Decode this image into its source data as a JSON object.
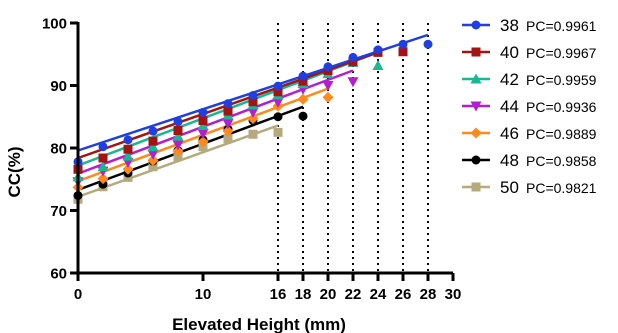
{
  "chart_data": {
    "type": "scatter",
    "xlabel": "Elevated Height (mm)",
    "ylabel": "CC(%)",
    "xlim": [
      0,
      30
    ],
    "ylim": [
      60,
      100
    ],
    "x_ticks": [
      0,
      10,
      16,
      18,
      20,
      22,
      24,
      26,
      28,
      30
    ],
    "x_tick_labels": [
      "0",
      "10",
      "16",
      "18",
      "20",
      "22",
      "24",
      "26",
      "28",
      "30"
    ],
    "y_ticks": [
      60,
      70,
      80,
      90,
      100
    ],
    "y_tick_labels": [
      "60",
      "70",
      "80",
      "90",
      "100"
    ],
    "vlines": [
      16,
      18,
      20,
      22,
      24,
      26,
      28
    ],
    "grid": false,
    "legend_position": "right",
    "series": [
      {
        "name": "38",
        "pc": "PC=0.9961",
        "color": "#1f3fe0",
        "marker": "circle",
        "line": {
          "x": [
            0,
            28
          ],
          "y": [
            79.6,
            98.1
          ]
        },
        "x": [
          0,
          2,
          4,
          6,
          8,
          10,
          12,
          14,
          16,
          18,
          20,
          22,
          24,
          26,
          28
        ],
        "y": [
          77.8,
          80.2,
          81.3,
          82.7,
          84.2,
          85.7,
          87.1,
          88.4,
          89.9,
          91.5,
          93.0,
          94.5,
          95.7,
          96.6,
          96.6
        ]
      },
      {
        "name": "40",
        "pc": "PC=0.9967",
        "color": "#a51212",
        "marker": "square",
        "line": {
          "x": [
            0,
            24
          ],
          "y": [
            78.4,
            95.3
          ]
        },
        "x": [
          0,
          2,
          4,
          6,
          8,
          10,
          12,
          14,
          16,
          18,
          20,
          22,
          24,
          26
        ],
        "y": [
          76.6,
          78.4,
          79.8,
          81.1,
          82.8,
          84.4,
          85.9,
          87.4,
          89.0,
          90.7,
          92.4,
          93.8,
          95.3,
          95.4
        ]
      },
      {
        "name": "42",
        "pc": "PC=0.9959",
        "color": "#18b890",
        "marker": "triangle-up",
        "line": {
          "x": [
            0,
            24
          ],
          "y": [
            77.2,
            95.3
          ]
        },
        "x": [
          0,
          2,
          4,
          6,
          8,
          10,
          12,
          14,
          16,
          18,
          20,
          22,
          24
        ],
        "y": [
          75.4,
          77.0,
          78.7,
          80.2,
          81.9,
          83.6,
          85.3,
          86.9,
          88.5,
          90.3,
          91.9,
          93.7,
          93.2
        ]
      },
      {
        "name": "44",
        "pc": "PC=0.9936",
        "color": "#b21fd0",
        "marker": "triangle-down",
        "line": {
          "x": [
            0,
            22
          ],
          "y": [
            75.9,
            92.4
          ]
        },
        "x": [
          0,
          2,
          4,
          6,
          8,
          10,
          12,
          14,
          16,
          18,
          20,
          22
        ],
        "y": [
          74.6,
          76.3,
          77.7,
          79.0,
          80.5,
          82.3,
          83.9,
          85.7,
          87.3,
          89.4,
          90.0,
          90.6
        ]
      },
      {
        "name": "46",
        "pc": "PC=0.9889",
        "color": "#ff8a1c",
        "marker": "diamond",
        "line": {
          "x": [
            0,
            20
          ],
          "y": [
            74.7,
            89.5
          ]
        },
        "x": [
          0,
          2,
          4,
          6,
          8,
          10,
          12,
          14,
          16,
          18,
          20
        ],
        "y": [
          73.7,
          75.1,
          76.6,
          78.0,
          79.5,
          81.0,
          82.7,
          84.7,
          86.7,
          87.8,
          88.1
        ]
      },
      {
        "name": "48",
        "pc": "PC=0.9858",
        "color": "#000000",
        "marker": "circle",
        "line": {
          "x": [
            0,
            18
          ],
          "y": [
            73.3,
            86.6
          ]
        },
        "x": [
          0,
          2,
          4,
          6,
          8,
          10,
          12,
          14,
          16,
          18
        ],
        "y": [
          72.4,
          74.2,
          76.0,
          77.9,
          79.6,
          81.3,
          83.0,
          84.4,
          85.0,
          85.1
        ]
      },
      {
        "name": "50",
        "pc": "PC=0.9821",
        "color": "#b5a97e",
        "marker": "square",
        "line": {
          "x": [
            0,
            16
          ],
          "y": [
            72.2,
            83.6
          ]
        },
        "x": [
          0,
          2,
          4,
          6,
          8,
          10,
          12,
          14,
          16
        ],
        "y": [
          71.8,
          73.8,
          75.3,
          77.0,
          78.6,
          80.2,
          81.5,
          82.2,
          82.5
        ]
      }
    ]
  }
}
